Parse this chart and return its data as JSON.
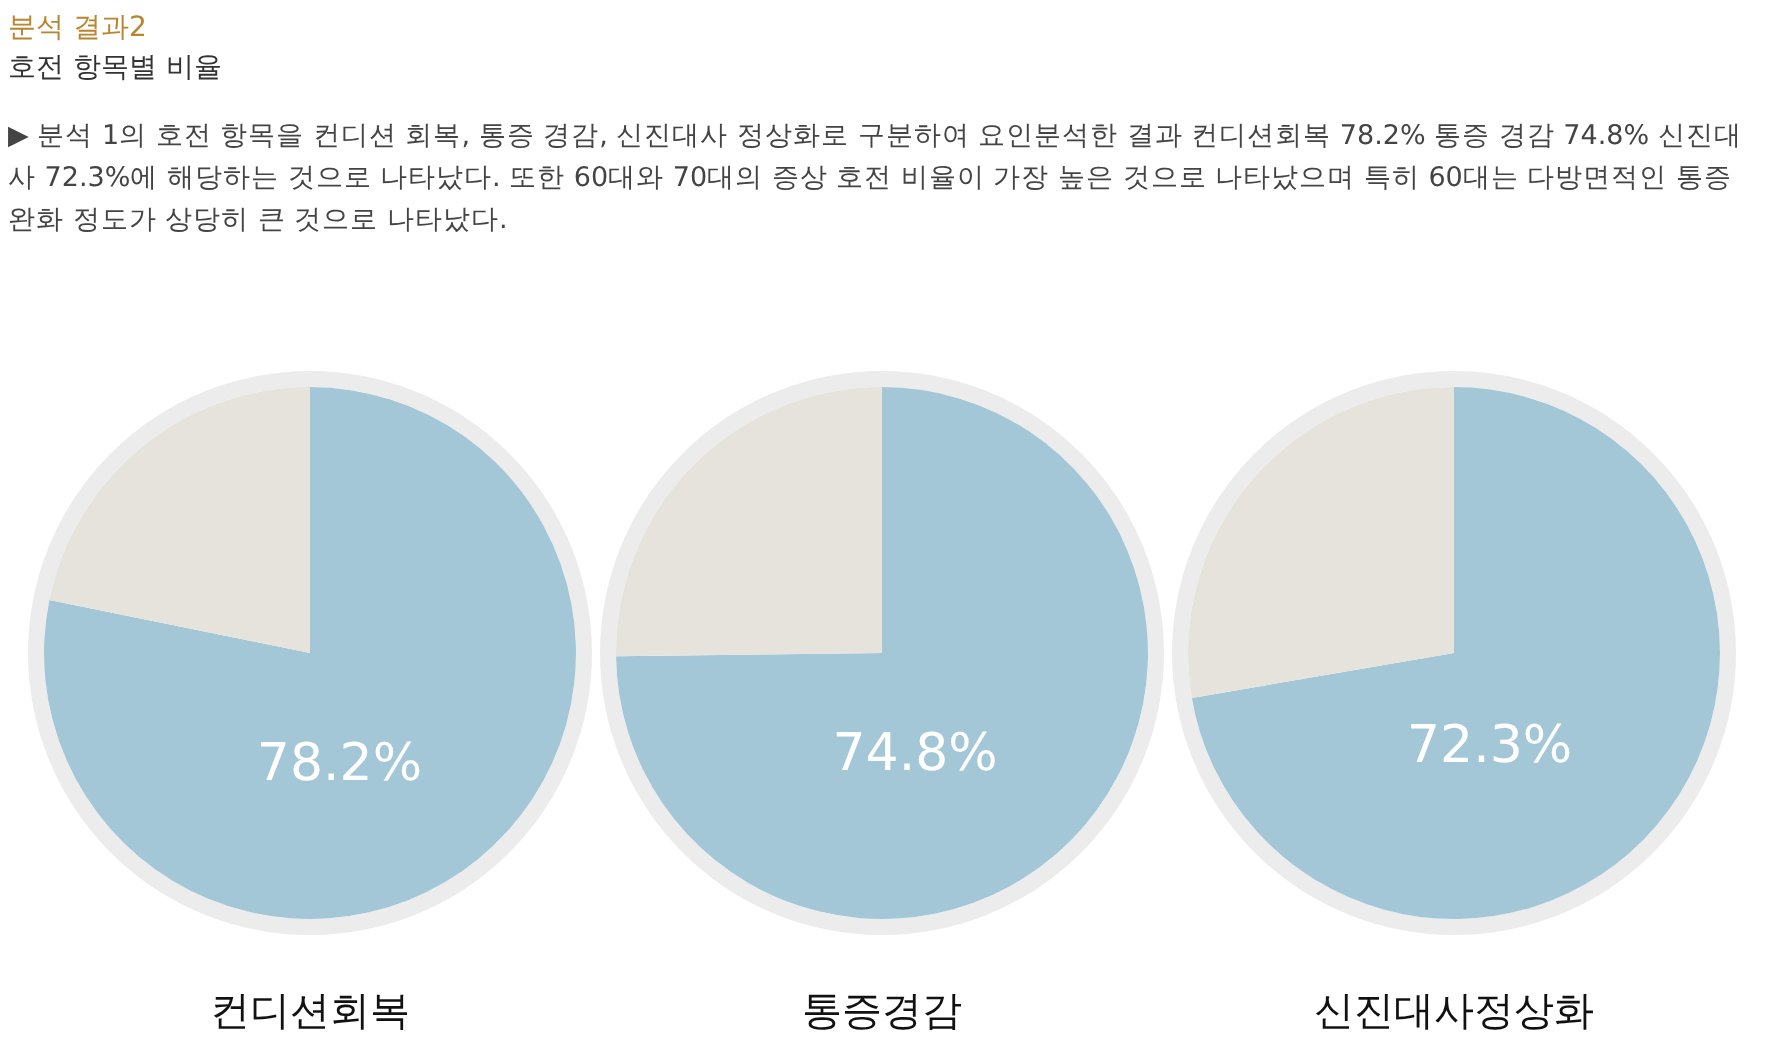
{
  "chart_data": [
    {
      "type": "other",
      "title": "분석 결과2",
      "subtitle": "호전 항목별 비율",
      "annotations": [
        "▶ 분석 1의 호전 항목을 컨디션 회복, 통증 경감, 신진대사 정상화로 구분하여 요인분석한 결과 컨디션회복 78.2% 통증 경감 74.8% 신진대사 72.3%에 해당하는 것으로 나타났다. 또한 60대와 70대의 증상 호전 비율이 가장 높은 것으로 나타났으며 특히 60대는 다방면적인 통증 완화 정도가 상당히 큰 것으로 나타났다."
      ]
    },
    {
      "type": "pie",
      "xlabel": "컨디션회복",
      "categories": [
        null,
        null
      ],
      "values": [
        78.2,
        21.8
      ],
      "colors": [
        "#a3c7d7",
        "#e6e3dc"
      ],
      "value_labels": [
        "78.2%",
        null
      ],
      "legend": false
    },
    {
      "type": "pie",
      "xlabel": "통증경감",
      "categories": [
        null,
        null
      ],
      "values": [
        74.8,
        25.2
      ],
      "colors": [
        "#a3c7d7",
        "#e6e3dc"
      ],
      "value_labels": [
        "74.8%",
        null
      ],
      "legend": false
    },
    {
      "type": "pie",
      "xlabel": "신진대사정상화",
      "categories": [
        null,
        null
      ],
      "values": [
        72.3,
        27.7
      ],
      "colors": [
        "#a3c7d7",
        "#e6e3dc"
      ],
      "value_labels": [
        "72.3%",
        null
      ],
      "legend": false
    }
  ]
}
